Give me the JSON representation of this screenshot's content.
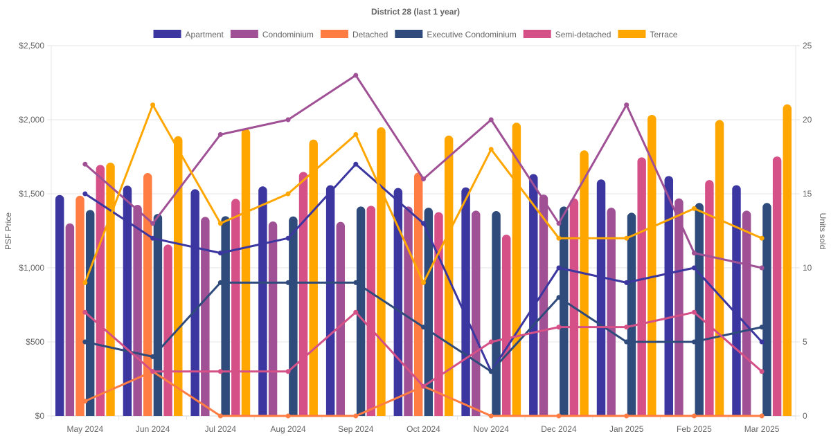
{
  "chart_data": {
    "type": "bar",
    "combo": "bar+line",
    "title": "District 28 (last 1 year)",
    "categories": [
      "May 2024",
      "Jun 2024",
      "Jul 2024",
      "Aug 2024",
      "Sep 2024",
      "Oct 2024",
      "Nov 2024",
      "Dec 2024",
      "Jan 2025",
      "Feb 2025",
      "Mar 2025"
    ],
    "y_left": {
      "label": "PSF Price",
      "range": [
        0,
        2500
      ],
      "ticks": [
        0,
        500,
        1000,
        1500,
        2000,
        2500
      ],
      "tick_labels": [
        "$0",
        "$500",
        "$1,000",
        "$1,500",
        "$2,000",
        "$2,500"
      ]
    },
    "y_right": {
      "label": "Units sold",
      "range": [
        0,
        25
      ],
      "ticks": [
        0,
        5,
        10,
        15,
        20,
        25
      ],
      "tick_labels": [
        "0",
        "5",
        "10",
        "15",
        "20",
        "25"
      ]
    },
    "grid": true,
    "legend_position": "top",
    "legend": [
      {
        "name": "Apartment",
        "color": "#3b36a0"
      },
      {
        "name": "Condominium",
        "color": "#a05195"
      },
      {
        "name": "Detached",
        "color": "#ff7c43"
      },
      {
        "name": "Executive Condominium",
        "color": "#2f4b7c"
      },
      {
        "name": "Semi-detached",
        "color": "#d45087"
      },
      {
        "name": "Terrace",
        "color": "#ffa600"
      }
    ],
    "bar_series": [
      {
        "name": "Apartment",
        "axis": "left",
        "color": "#3b36a0",
        "values": [
          1492,
          1555,
          1531,
          1550,
          1558,
          1539,
          1543,
          1633,
          1597,
          1620,
          1558
        ]
      },
      {
        "name": "Condominium",
        "axis": "left",
        "color": "#a05195",
        "values": [
          1300,
          1425,
          1344,
          1313,
          1310,
          1414,
          1386,
          1495,
          1406,
          1469,
          1386
        ]
      },
      {
        "name": "Detached",
        "axis": "left",
        "color": "#ff7c43",
        "values": [
          1487,
          1640,
          null,
          null,
          null,
          1643,
          null,
          null,
          null,
          null,
          null
        ]
      },
      {
        "name": "Executive Condominium",
        "axis": "left",
        "color": "#2f4b7c",
        "values": [
          1391,
          1364,
          1349,
          1347,
          1414,
          1406,
          1383,
          1414,
          1372,
          1438,
          1438
        ]
      },
      {
        "name": "Semi-detached",
        "axis": "left",
        "color": "#d45087",
        "values": [
          1695,
          1157,
          1466,
          1648,
          1419,
          1376,
          1224,
          1469,
          1746,
          1593,
          1752
        ]
      },
      {
        "name": "Terrace",
        "axis": "left",
        "color": "#ffa600",
        "values": [
          1710,
          1889,
          1939,
          1866,
          1949,
          1893,
          1980,
          1793,
          2033,
          1998,
          2104
        ]
      }
    ],
    "line_series": [
      {
        "name": "Apartment",
        "axis": "right",
        "color": "#3b36a0",
        "values": [
          15,
          12,
          11,
          12,
          17,
          13,
          3,
          10,
          9,
          10,
          5
        ]
      },
      {
        "name": "Condominium",
        "axis": "right",
        "color": "#a05195",
        "values": [
          17,
          13,
          19,
          20,
          23,
          16,
          20,
          13,
          21,
          11,
          10
        ]
      },
      {
        "name": "Detached",
        "axis": "right",
        "color": "#ff7c43",
        "values": [
          1,
          3,
          0,
          0,
          0,
          2,
          0,
          0,
          0,
          0,
          0
        ]
      },
      {
        "name": "Executive Condominium",
        "axis": "right",
        "color": "#2f4b7c",
        "values": [
          5,
          4,
          9,
          9,
          9,
          6,
          3,
          8,
          5,
          5,
          6
        ]
      },
      {
        "name": "Semi-detached",
        "axis": "right",
        "color": "#d45087",
        "values": [
          7,
          3,
          3,
          3,
          7,
          2,
          5,
          6,
          6,
          7,
          3
        ]
      },
      {
        "name": "Terrace",
        "axis": "right",
        "color": "#ffa600",
        "values": [
          9,
          21,
          13,
          15,
          19,
          9,
          18,
          12,
          12,
          14,
          12
        ]
      }
    ]
  }
}
